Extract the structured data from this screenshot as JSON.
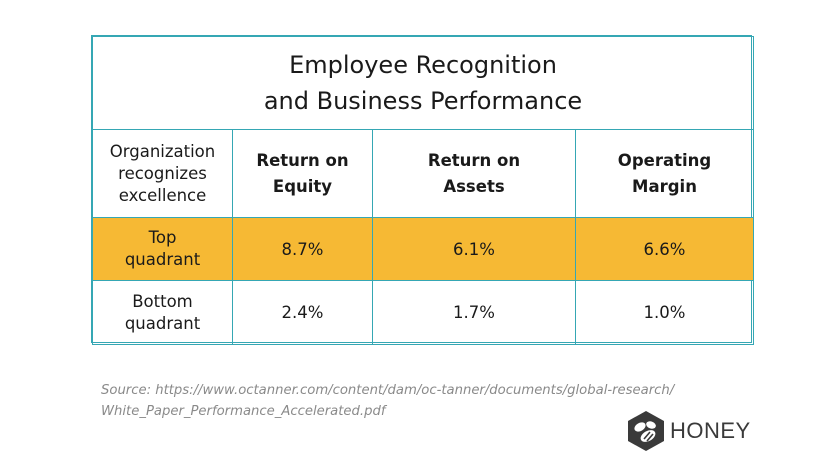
{
  "title": {
    "line1": "Employee Recognition",
    "line2": "and Business Performance"
  },
  "header": {
    "row_label": [
      "Organization",
      "recognizes",
      "excellence"
    ],
    "columns": [
      [
        "Return on",
        "Equity"
      ],
      [
        "Return on",
        "Assets"
      ],
      [
        "Operating",
        "Margin"
      ]
    ]
  },
  "rows": [
    {
      "label": [
        "Top",
        "quadrant"
      ],
      "values": [
        "8.7%",
        "6.1%",
        "6.6%"
      ]
    },
    {
      "label": [
        "Bottom",
        "quadrant"
      ],
      "values": [
        "2.4%",
        "1.7%",
        "1.0%"
      ]
    }
  ],
  "source": {
    "line1": "Source: https://www.octanner.com/content/dam/oc-tanner/documents/global-research/",
    "line2": "White_Paper_Performance_Accelerated.pdf"
  },
  "logo": {
    "text": "HONEY",
    "icon": "honey-bee-hexagon-icon"
  },
  "colors": {
    "border": "#35a7b4",
    "highlight_row": "#f6b934",
    "source_text": "#8a8a8a"
  }
}
